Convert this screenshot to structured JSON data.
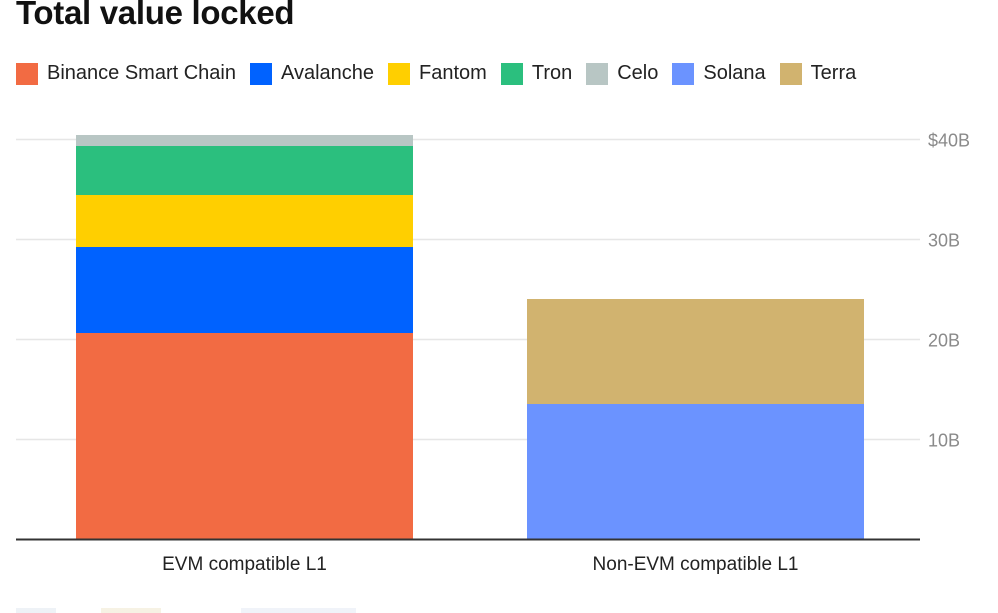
{
  "chart_data": {
    "type": "bar",
    "stacked": true,
    "title": "Total value locked",
    "xlabel": "",
    "ylabel": "",
    "categories": [
      "EVM compatible L1",
      "Non-EVM compatible L1"
    ],
    "series": [
      {
        "name": "Binance Smart Chain",
        "color": "#f26b43",
        "values": [
          20.6,
          0
        ]
      },
      {
        "name": "Avalanche",
        "color": "#0062ff",
        "values": [
          8.6,
          0
        ]
      },
      {
        "name": "Fantom",
        "color": "#ffcf00",
        "values": [
          5.2,
          0
        ]
      },
      {
        "name": "Tron",
        "color": "#2bbf7e",
        "values": [
          4.9,
          0
        ]
      },
      {
        "name": "Celo",
        "color": "#b8c6c4",
        "values": [
          1.1,
          0
        ]
      },
      {
        "name": "Solana",
        "color": "#6b93ff",
        "values": [
          0,
          13.5
        ]
      },
      {
        "name": "Terra",
        "color": "#d1b36f",
        "values": [
          0,
          10.5
        ]
      }
    ],
    "yticks": [
      {
        "value": 10,
        "label": "10B"
      },
      {
        "value": 20,
        "label": "20B"
      },
      {
        "value": 30,
        "label": "30B"
      },
      {
        "value": 40,
        "label": "$40B"
      }
    ],
    "ylim": [
      0,
      40
    ],
    "y_axis_position": "right",
    "grid": true,
    "legend_position": "top-left",
    "unit": "billion USD"
  }
}
